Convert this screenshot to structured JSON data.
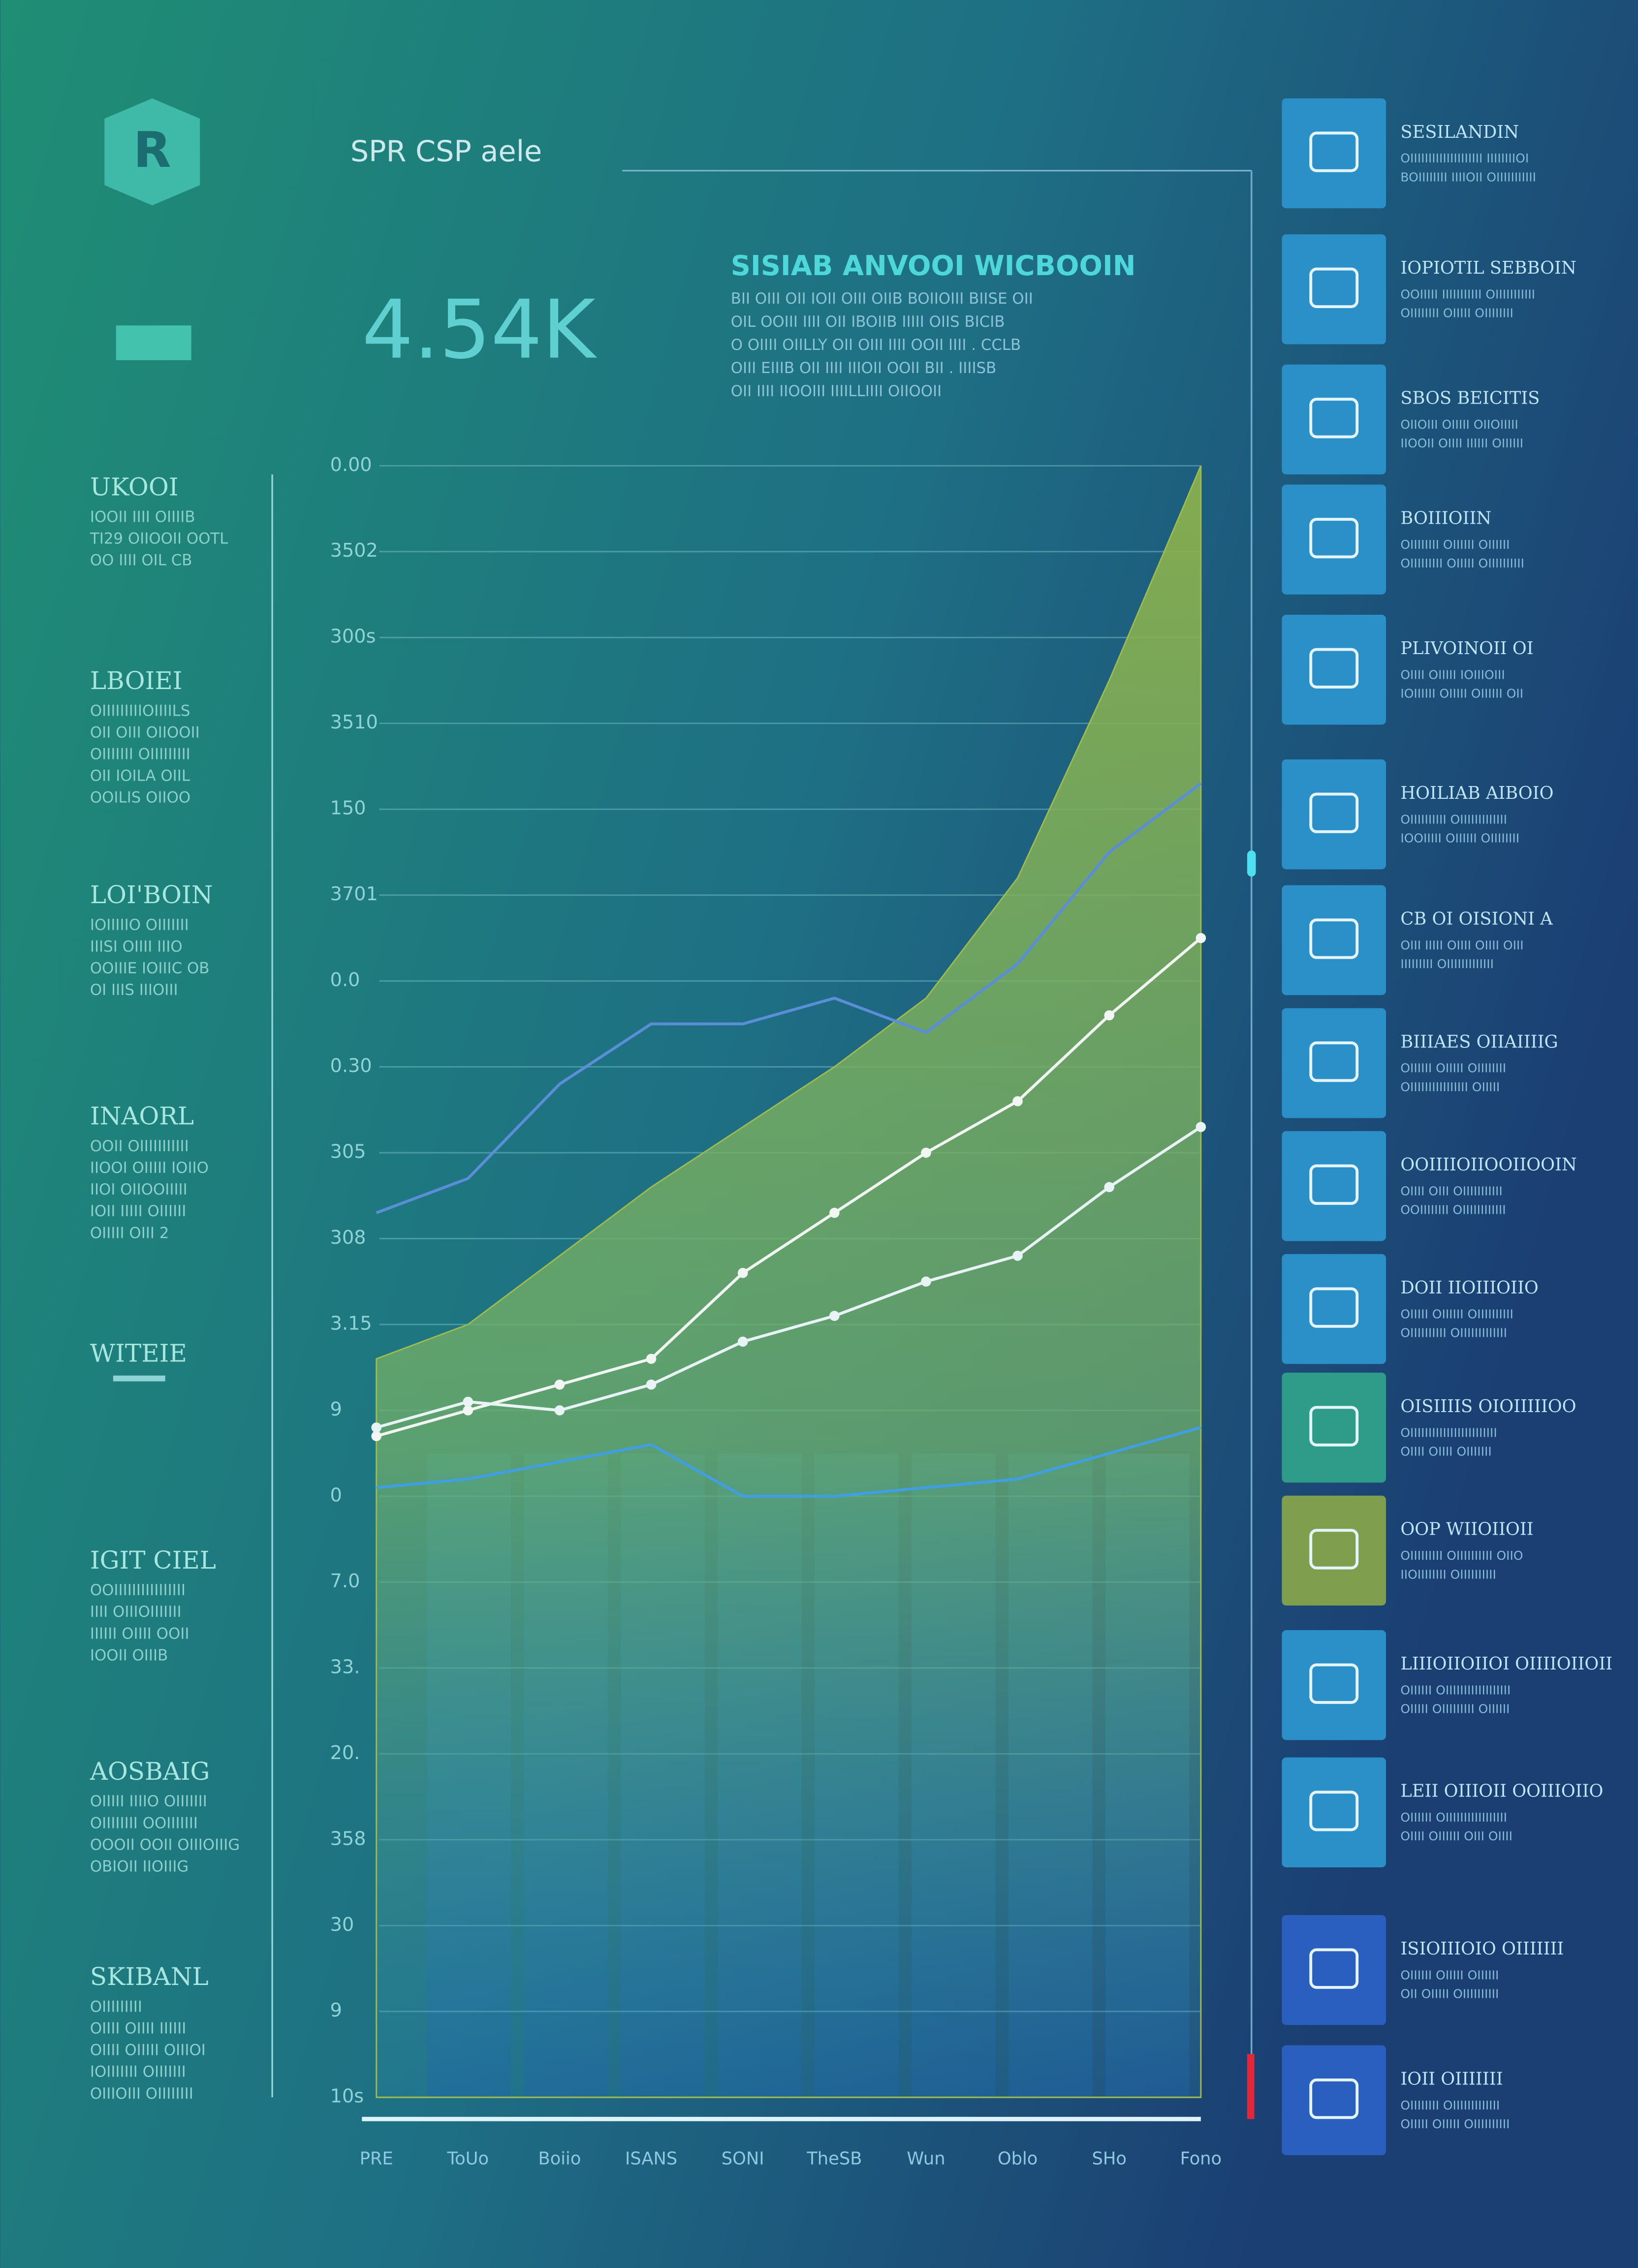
{
  "header": {
    "brand": "R",
    "title": "SPR CSP aele",
    "kpi": "4.54K",
    "heading": "SISIAB ANVOOI WICBOOIN",
    "description": [
      "BII OIII OII IOII OIII OIIB BOIIOIII BIISE OII",
      "OIL OOIII IIII OII IBOIIB IIIII OIIS BICIB",
      "O OIIII OIILLY OII OIII IIII OOII IIII . CCLB",
      "OIII EIIIB OII IIII IIIOII OOII BII . IIIISB",
      "OII IIII IIOOIII IIIILLIIII OIIOOII"
    ]
  },
  "left_panel": [
    {
      "title": "UKOOI",
      "lines": [
        "IOOII IIII OIIIIB",
        "TI29 OIIOOII OOTL",
        "OO IIII OIL CB"
      ]
    },
    {
      "title": "LBOIEI",
      "lines": [
        "OIIIIIIIIIOIIIILS",
        "OII OIII OIIOOII",
        "OIIIIIII OIIIIIIIII",
        "OII IOILA OIIL",
        "OOILIS OIIOO"
      ]
    },
    {
      "title": "LOI'BOIN",
      "lines": [
        "IOIIIIIO OIIIIIII",
        "IIISI OIIII IIIO",
        "OOIIIE IOIIIC OB",
        "OI IIIS IIIOIII"
      ]
    },
    {
      "title": "INAORL",
      "lines": [
        "OOII OIIIIIIIIIII",
        "IIOOI OIIIII IOIIO",
        "IIOI OIIOOIIIII",
        "IOII IIIII OIIIIII",
        "OIIIII OIII 2"
      ]
    },
    {
      "title": "WITEIE",
      "lines": []
    },
    {
      "title": "IGIT CIEL",
      "lines": [
        "OOIIIIIIIIIIIIIIII",
        "IIII OIIIOIIIIIII",
        "IIIIII OIIII OOII",
        "IOOII OIIIB"
      ]
    },
    {
      "title": "AOSBAIG",
      "lines": [
        "OIIIII IIIIO OIIIIIII",
        "OIIIIIIII OOIIIIIII",
        "OOOII OOII OIIIOIIIG",
        "OBIOII IIOIIIG"
      ]
    },
    {
      "title": "SKIBANL",
      "lines": [
        "OIIIIIIIII",
        "OIIII OIIII IIIIII",
        "OIIII OIIIII OIIIOI",
        "IOIIIIIII OIIIIIII",
        "OIIIOIII OIIIIIIII"
      ]
    }
  ],
  "right_panel": [
    {
      "title": "SESILANDIN",
      "lines": [
        "OIIIIIIIIIIIIIIIIIIII IIIIIIIIOI",
        "BOIIIIIIII IIIIOII OIIIIIIIIIII"
      ]
    },
    {
      "title": "IOPIOTIL SEBBOIN",
      "lines": [
        "OOIIIII IIIIIIIIIII OIIIIIIIIIII",
        "OIIIIIIII OIIIII OIIIIIIII"
      ]
    },
    {
      "title": "SBOS BEICITIS",
      "lines": [
        "OIIOIII OIIIII OIIOIIIII",
        "IIOOII OIIII IIIIII OIIIIII"
      ]
    },
    {
      "title": "BOIIIOIIN",
      "lines": [
        "OIIIIIIII OIIIIII OIIIIII",
        "OIIIIIIIII OIIIII OIIIIIIIIII"
      ]
    },
    {
      "title": "PLIVOINOII OI",
      "lines": [
        "OIIII OIIIII IOIIIOIII",
        "IOIIIIII OIIIII OIIIIII OII"
      ]
    },
    {
      "title": "HOILIAB AIBOIO",
      "lines": [
        "OIIIIIIIIII OIIIIIIIIIIIII",
        "IOOIIIII OIIIIII OIIIIIIII"
      ]
    },
    {
      "title": "CB OI OISIONI A",
      "lines": [
        "OIII IIIII OIIII OIIII OIII",
        "IIIIIIIII OIIIIIIIIIIIII"
      ]
    },
    {
      "title": "BIIIAES OIIAIIIIG",
      "lines": [
        "OIIIIII OIIIII OIIIIIIII",
        "OIIIIIIIIIIIIIIII OIIIII"
      ]
    },
    {
      "title": "OOIIIIOIIOOIIOOIN",
      "lines": [
        "OIIII OIII OIIIIIIIIIII",
        "OOIIIIIIII OIIIIIIIIIIII"
      ]
    },
    {
      "title": "DOII IIOIIIOIIO",
      "lines": [
        "OIIIII OIIIIII OIIIIIIIIII",
        "OIIIIIIIIII OIIIIIIIIIIIII"
      ]
    },
    {
      "title": "OISIIIIS OIOIIIIIOO",
      "lines": [
        "OIIIIIIIIIIIIIIIIIIIIIIII",
        "OIIII OIIII OIIIIIII"
      ]
    },
    {
      "title": "OOP WIIOIIOII",
      "lines": [
        "OIIIIIIIII OIIIIIIIIII OIIO",
        "IIOIIIIIIII OIIIIIIIIII"
      ]
    },
    {
      "title": "LIIIOIIOIIOI OIIIIOIIOII",
      "lines": [
        "OIIIIII OIIIIIIIIIIIIIIIIII",
        "OIIIII OIIIIIIIII OIIIIII"
      ]
    },
    {
      "title": "LEII OIIIOII OOIIIOIIO",
      "lines": [
        "OIIIIII OIIIIIIIIIIIIIIIII",
        "OIIII OIIIIII OIII OIIII"
      ]
    },
    {
      "title": "ISIOIIIOIO OIIIIIII",
      "lines": [
        "OIIIIII OIIIII OIIIIII",
        "OII OIIIII OIIIIIIIIII"
      ]
    },
    {
      "title": "IOII OIIIIIII",
      "lines": [
        "OIIIIIIII OIIIIIIIIIIIII",
        "OIIIII OIIIII OIIIIIIIIII"
      ]
    }
  ],
  "chart_data": {
    "type": "line",
    "categories": [
      "PRE",
      "ToUo",
      "Boiio",
      "ISANS",
      "SONI",
      "TheSB",
      "Wun",
      "Oblo",
      "SHo",
      "Fono"
    ],
    "series": [
      {
        "color": "#9fbb4e",
        "fill": true,
        "values": [
          8.6,
          9.0,
          9.8,
          10.6,
          11.3,
          12.0,
          12.8,
          14.2,
          16.5,
          19.0
        ]
      },
      {
        "color": "#f2f6f2",
        "markers": true,
        "values": [
          7.7,
          8.0,
          8.3,
          8.6,
          9.6,
          10.3,
          11.0,
          11.6,
          12.6,
          13.5
        ]
      },
      {
        "color": "#e8f3f5",
        "markers": true,
        "values": [
          7.8,
          8.1,
          8.0,
          8.3,
          8.8,
          9.1,
          9.5,
          9.8,
          10.6,
          11.3
        ]
      },
      {
        "color": "#5a8fd8",
        "values": [
          10.3,
          10.7,
          11.8,
          12.5,
          12.5,
          12.8,
          12.4,
          13.2,
          14.5,
          15.3
        ]
      },
      {
        "color": "#3f9fe0",
        "values": [
          7.1,
          7.2,
          7.4,
          7.6,
          7.0,
          7.0,
          7.1,
          7.2,
          7.5,
          7.8
        ]
      }
    ],
    "ylim": [
      0,
      19
    ],
    "yticks": [
      {
        "value": 0,
        "label": "10s"
      },
      {
        "value": 1,
        "label": "9"
      },
      {
        "value": 2,
        "label": "30"
      },
      {
        "value": 3,
        "label": "358"
      },
      {
        "value": 4,
        "label": "20."
      },
      {
        "value": 5,
        "label": "33."
      },
      {
        "value": 6,
        "label": "7.0"
      },
      {
        "value": 7,
        "label": "0"
      },
      {
        "value": 8,
        "label": "9"
      },
      {
        "value": 9,
        "label": "3.15"
      },
      {
        "value": 10,
        "label": "308"
      },
      {
        "value": 11,
        "label": "305"
      },
      {
        "value": 12,
        "label": "0.30"
      },
      {
        "value": 13,
        "label": "0.0"
      },
      {
        "value": 14,
        "label": "3701"
      },
      {
        "value": 15,
        "label": "150"
      },
      {
        "value": 16,
        "label": "3510"
      },
      {
        "value": 17,
        "label": "300s"
      },
      {
        "value": 18,
        "label": "3502"
      },
      {
        "value": 19,
        "label": "0.00"
      }
    ],
    "grid": true
  }
}
